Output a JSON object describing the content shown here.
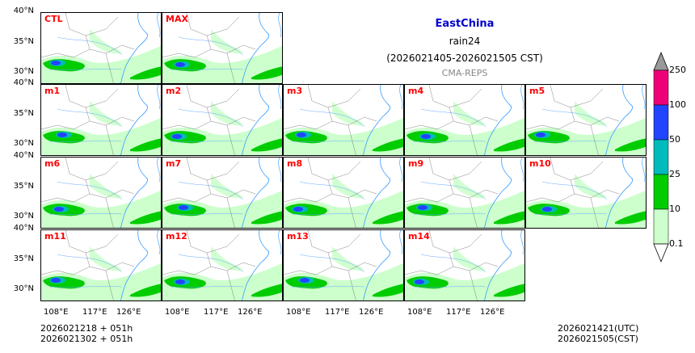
{
  "header": {
    "region": "EastChina",
    "variable": "rain24",
    "period": "(2026021405-2026021505 CST)",
    "model": "CMA-REPS"
  },
  "panels": [
    {
      "label": "CTL"
    },
    {
      "label": "MAX"
    },
    {
      "label": "m1"
    },
    {
      "label": "m2"
    },
    {
      "label": "m3"
    },
    {
      "label": "m4"
    },
    {
      "label": "m5"
    },
    {
      "label": "m6"
    },
    {
      "label": "m7"
    },
    {
      "label": "m8"
    },
    {
      "label": "m9"
    },
    {
      "label": "m10"
    },
    {
      "label": "m11"
    },
    {
      "label": "m12"
    },
    {
      "label": "m13"
    },
    {
      "label": "m14"
    }
  ],
  "axes": {
    "lat_ticks": [
      "40°N",
      "35°N",
      "30°N"
    ],
    "lon_ticks": [
      "108°E",
      "117°E",
      "126°E"
    ]
  },
  "colorbar": {
    "levels": [
      "0.1",
      "10",
      "25",
      "50",
      "100",
      "250"
    ],
    "colors": [
      "#ccffcc",
      "#00cc00",
      "#00bbbb",
      "#2244ff",
      "#ee0077"
    ],
    "ext_color": "#999999"
  },
  "footer": {
    "init_line1": "2026021218  +  051h",
    "init_line2": "2026021302  +  051h",
    "valid_utc": "2026021421(UTC)",
    "valid_cst": "2026021505(CST)"
  }
}
